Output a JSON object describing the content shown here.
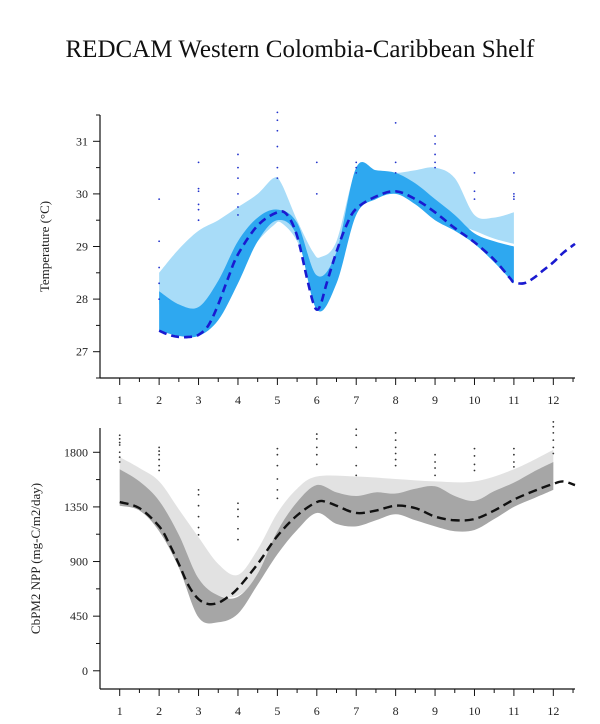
{
  "title": "REDCAM Western Colombia-Caribbean Shelf",
  "colors": {
    "temp_outer": "#a8dcf8",
    "temp_inner": "#2ea8f0",
    "temp_line": "#1a1ad0",
    "temp_dots": "#2233cc",
    "npp_outer": "#e2e2e2",
    "npp_inner": "#a6a6a6",
    "npp_line": "#111111",
    "npp_dots": "#333333",
    "axis": "#111111"
  },
  "chart_data": [
    {
      "type": "area",
      "ylabel": "Temperature (°C)",
      "xlabel": "",
      "xlim": [
        0.5,
        12.55
      ],
      "ylim": [
        26.5,
        31.5
      ],
      "x_ticks": [
        1,
        2,
        3,
        4,
        5,
        6,
        7,
        8,
        9,
        10,
        11,
        12
      ],
      "y_ticks": [
        27,
        28,
        29,
        30,
        31
      ],
      "outer_band": {
        "x": [
          2,
          2.5,
          3,
          3.5,
          4,
          4.5,
          4.9,
          5.1,
          5.5,
          5.9,
          6.1,
          6.5,
          7,
          7.5,
          8,
          8.5,
          9,
          9.5,
          10,
          10.5,
          11
        ],
        "upper": [
          28.5,
          28.95,
          29.3,
          29.5,
          29.75,
          30.0,
          30.3,
          30.2,
          29.5,
          28.9,
          28.8,
          29.1,
          30.45,
          30.45,
          30.4,
          30.45,
          30.5,
          30.3,
          29.6,
          29.55,
          29.65
        ],
        "lower": [
          27.9,
          27.85,
          27.8,
          28.1,
          28.6,
          29.1,
          29.4,
          29.45,
          29.1,
          28.3,
          28.2,
          28.7,
          29.9,
          30.1,
          30.1,
          29.9,
          29.7,
          29.45,
          29.3,
          29.15,
          29.05
        ]
      },
      "inner_band": {
        "x": [
          2,
          2.5,
          3,
          3.5,
          4,
          4.5,
          5,
          5.5,
          6,
          6.5,
          7,
          7.5,
          8,
          8.5,
          9,
          9.5,
          10,
          10.5,
          11
        ],
        "upper": [
          28.15,
          27.9,
          27.85,
          28.35,
          29.1,
          29.55,
          29.7,
          29.45,
          28.45,
          28.9,
          30.5,
          30.45,
          30.4,
          30.2,
          29.9,
          29.6,
          29.25,
          29.1,
          29.0
        ],
        "lower": [
          27.4,
          27.3,
          27.3,
          27.6,
          28.3,
          29.1,
          29.5,
          29.2,
          27.8,
          28.3,
          29.6,
          29.9,
          30.0,
          29.8,
          29.5,
          29.3,
          29.05,
          28.7,
          28.3
        ]
      },
      "series": [
        {
          "x": [
            2,
            2.25,
            2.5,
            2.75,
            3,
            3.25,
            3.5,
            3.75,
            4,
            4.5,
            5,
            5.25,
            5.5,
            5.75,
            5.9,
            6.0,
            6.1,
            6.25,
            6.5,
            6.75,
            7,
            7.5,
            8,
            8.5,
            9,
            9.5,
            10,
            10.5,
            10.9,
            11,
            11.25,
            11.5,
            11.75,
            12,
            12.25,
            12.55
          ],
          "values": [
            27.4,
            27.32,
            27.28,
            27.28,
            27.32,
            27.5,
            27.9,
            28.4,
            28.85,
            29.4,
            29.65,
            29.6,
            29.2,
            28.4,
            27.95,
            27.8,
            27.9,
            28.3,
            28.9,
            29.4,
            29.72,
            29.95,
            30.05,
            29.9,
            29.65,
            29.35,
            29.08,
            28.75,
            28.4,
            28.32,
            28.3,
            28.4,
            28.55,
            28.7,
            28.88,
            29.05
          ]
        }
      ],
      "scatter": {
        "x": [
          2,
          2,
          2,
          2,
          2,
          3,
          3,
          3,
          3,
          3,
          3,
          4,
          4,
          4,
          4,
          4,
          4,
          5,
          5,
          5,
          5,
          5,
          5,
          6,
          6,
          7,
          7,
          7,
          8,
          8,
          8,
          9,
          9,
          9,
          9,
          9,
          10,
          10,
          10,
          11,
          11,
          11,
          11
        ],
        "y": [
          29.9,
          29.1,
          28.6,
          28.3,
          28.0,
          30.6,
          30.1,
          30.05,
          29.8,
          29.7,
          29.5,
          30.75,
          30.5,
          30.3,
          30.0,
          29.75,
          29.6,
          31.55,
          31.4,
          31.2,
          30.9,
          30.5,
          30.3,
          30.6,
          30.0,
          30.6,
          30.5,
          30.4,
          31.35,
          30.6,
          30.4,
          31.1,
          30.95,
          30.75,
          30.6,
          30.5,
          30.4,
          30.05,
          29.9,
          30.4,
          30.0,
          29.95,
          29.9
        ]
      }
    },
    {
      "type": "area",
      "ylabel": "CbPM2 NPP (mg-C/m2/day)",
      "xlabel": "",
      "xlim": [
        0.5,
        12.55
      ],
      "ylim": [
        -150,
        2000
      ],
      "x_ticks": [
        1,
        2,
        3,
        4,
        5,
        6,
        7,
        8,
        9,
        10,
        11,
        12
      ],
      "y_ticks": [
        0,
        450,
        900,
        1350,
        1800
      ],
      "outer_band": {
        "x": [
          1,
          1.5,
          2,
          2.5,
          3,
          3.5,
          4,
          4.5,
          5,
          5.5,
          6,
          7,
          8,
          9,
          10,
          11,
          12
        ],
        "upper": [
          1760,
          1670,
          1560,
          1330,
          1100,
          880,
          790,
          1000,
          1300,
          1500,
          1600,
          1600,
          1580,
          1560,
          1560,
          1660,
          1820
        ],
        "lower": [
          1470,
          1420,
          1310,
          1050,
          730,
          620,
          620,
          770,
          1050,
          1280,
          1400,
          1350,
          1390,
          1350,
          1290,
          1360,
          1530
        ]
      },
      "inner_band": {
        "x": [
          1,
          1.5,
          2,
          2.5,
          3,
          3.5,
          4,
          4.5,
          5,
          5.5,
          6,
          6.5,
          7,
          7.5,
          8,
          8.5,
          9,
          9.5,
          10,
          10.5,
          11,
          11.5,
          12
        ],
        "upper": [
          1660,
          1560,
          1400,
          1120,
          760,
          620,
          610,
          800,
          1150,
          1390,
          1530,
          1470,
          1440,
          1470,
          1460,
          1500,
          1520,
          1440,
          1400,
          1480,
          1550,
          1640,
          1720
        ],
        "lower": [
          1360,
          1320,
          1150,
          850,
          440,
          400,
          470,
          710,
          960,
          1160,
          1300,
          1210,
          1190,
          1240,
          1290,
          1240,
          1190,
          1150,
          1160,
          1250,
          1350,
          1420,
          1490
        ]
      },
      "series": [
        {
          "x": [
            1,
            1.5,
            2,
            2.25,
            2.5,
            2.75,
            3,
            3.25,
            3.5,
            3.75,
            4,
            4.5,
            5,
            5.5,
            6,
            6.25,
            6.5,
            7,
            7.5,
            8,
            8.5,
            9,
            9.5,
            10,
            10.5,
            11,
            11.5,
            12,
            12.25,
            12.55
          ],
          "values": [
            1390,
            1340,
            1190,
            1050,
            880,
            700,
            590,
            550,
            560,
            610,
            680,
            880,
            1110,
            1280,
            1390,
            1390,
            1360,
            1300,
            1320,
            1360,
            1340,
            1270,
            1240,
            1250,
            1320,
            1410,
            1480,
            1540,
            1560,
            1530
          ]
        }
      ],
      "scatter": {
        "x": [
          1,
          1,
          1,
          1,
          1,
          1,
          1,
          2,
          2,
          2,
          2,
          2,
          2,
          3,
          3,
          3,
          3,
          3,
          3,
          4,
          4,
          4,
          4,
          4,
          5,
          5,
          5,
          5,
          5,
          5,
          6,
          6,
          6,
          6,
          6,
          7,
          7,
          7,
          7,
          7,
          8,
          8,
          8,
          8,
          8,
          8,
          9,
          9,
          9,
          9,
          10,
          10,
          10,
          10,
          11,
          11,
          11,
          11,
          12,
          12,
          12,
          12,
          12,
          12
        ],
        "y": [
          1940,
          1910,
          1880,
          1860,
          1800,
          1760,
          1720,
          1840,
          1810,
          1780,
          1740,
          1690,
          1650,
          1490,
          1450,
          1360,
          1270,
          1180,
          1120,
          1380,
          1330,
          1270,
          1170,
          1080,
          1830,
          1780,
          1690,
          1580,
          1490,
          1420,
          1950,
          1910,
          1840,
          1780,
          1700,
          1990,
          1940,
          1840,
          1690,
          1610,
          1960,
          1900,
          1840,
          1790,
          1740,
          1690,
          1780,
          1720,
          1670,
          1610,
          1830,
          1770,
          1700,
          1650,
          1830,
          1780,
          1720,
          1680,
          2050,
          2010,
          1960,
          1900,
          1840,
          1790
        ]
      }
    }
  ]
}
